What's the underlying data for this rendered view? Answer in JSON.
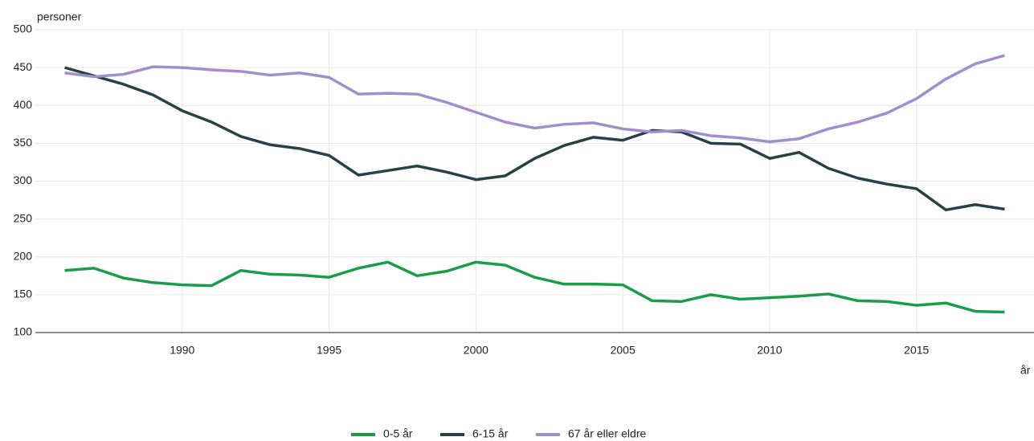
{
  "chart_data": {
    "type": "line",
    "y_label": "personer",
    "x_label": "år",
    "x": [
      1986,
      1987,
      1988,
      1989,
      1990,
      1991,
      1992,
      1993,
      1994,
      1995,
      1996,
      1997,
      1998,
      1999,
      2000,
      2001,
      2002,
      2003,
      2004,
      2005,
      2006,
      2007,
      2008,
      2009,
      2010,
      2011,
      2012,
      2013,
      2014,
      2015,
      2016,
      2017,
      2018
    ],
    "series": [
      {
        "name": "0-5 år",
        "color": "#1a9d49",
        "values": [
          182,
          185,
          172,
          166,
          163,
          162,
          182,
          177,
          176,
          173,
          185,
          193,
          175,
          181,
          193,
          189,
          173,
          164,
          164,
          163,
          142,
          141,
          150,
          144,
          146,
          148,
          151,
          142,
          141,
          136,
          139,
          128,
          127
        ]
      },
      {
        "name": "6-15 år",
        "color": "#274247",
        "values": [
          450,
          439,
          428,
          414,
          393,
          378,
          359,
          348,
          343,
          334,
          308,
          314,
          320,
          312,
          302,
          307,
          330,
          347,
          358,
          354,
          367,
          365,
          350,
          349,
          330,
          338,
          317,
          304,
          296,
          290,
          262,
          269,
          263
        ]
      },
      {
        "name": "67 år eller eldre",
        "color": "#9f8fcc",
        "values": [
          443,
          438,
          441,
          451,
          450,
          447,
          445,
          440,
          443,
          437,
          415,
          416,
          415,
          404,
          391,
          378,
          370,
          375,
          377,
          369,
          365,
          367,
          360,
          357,
          352,
          356,
          369,
          378,
          390,
          409,
          435,
          455,
          466
        ]
      }
    ],
    "xlim": [
      1985,
      2019
    ],
    "xticks": [
      1990,
      1995,
      2000,
      2005,
      2010,
      2015
    ],
    "ylim": [
      100,
      500
    ],
    "yticks": [
      100,
      150,
      200,
      250,
      300,
      350,
      400,
      450,
      500
    ],
    "grid": true
  }
}
